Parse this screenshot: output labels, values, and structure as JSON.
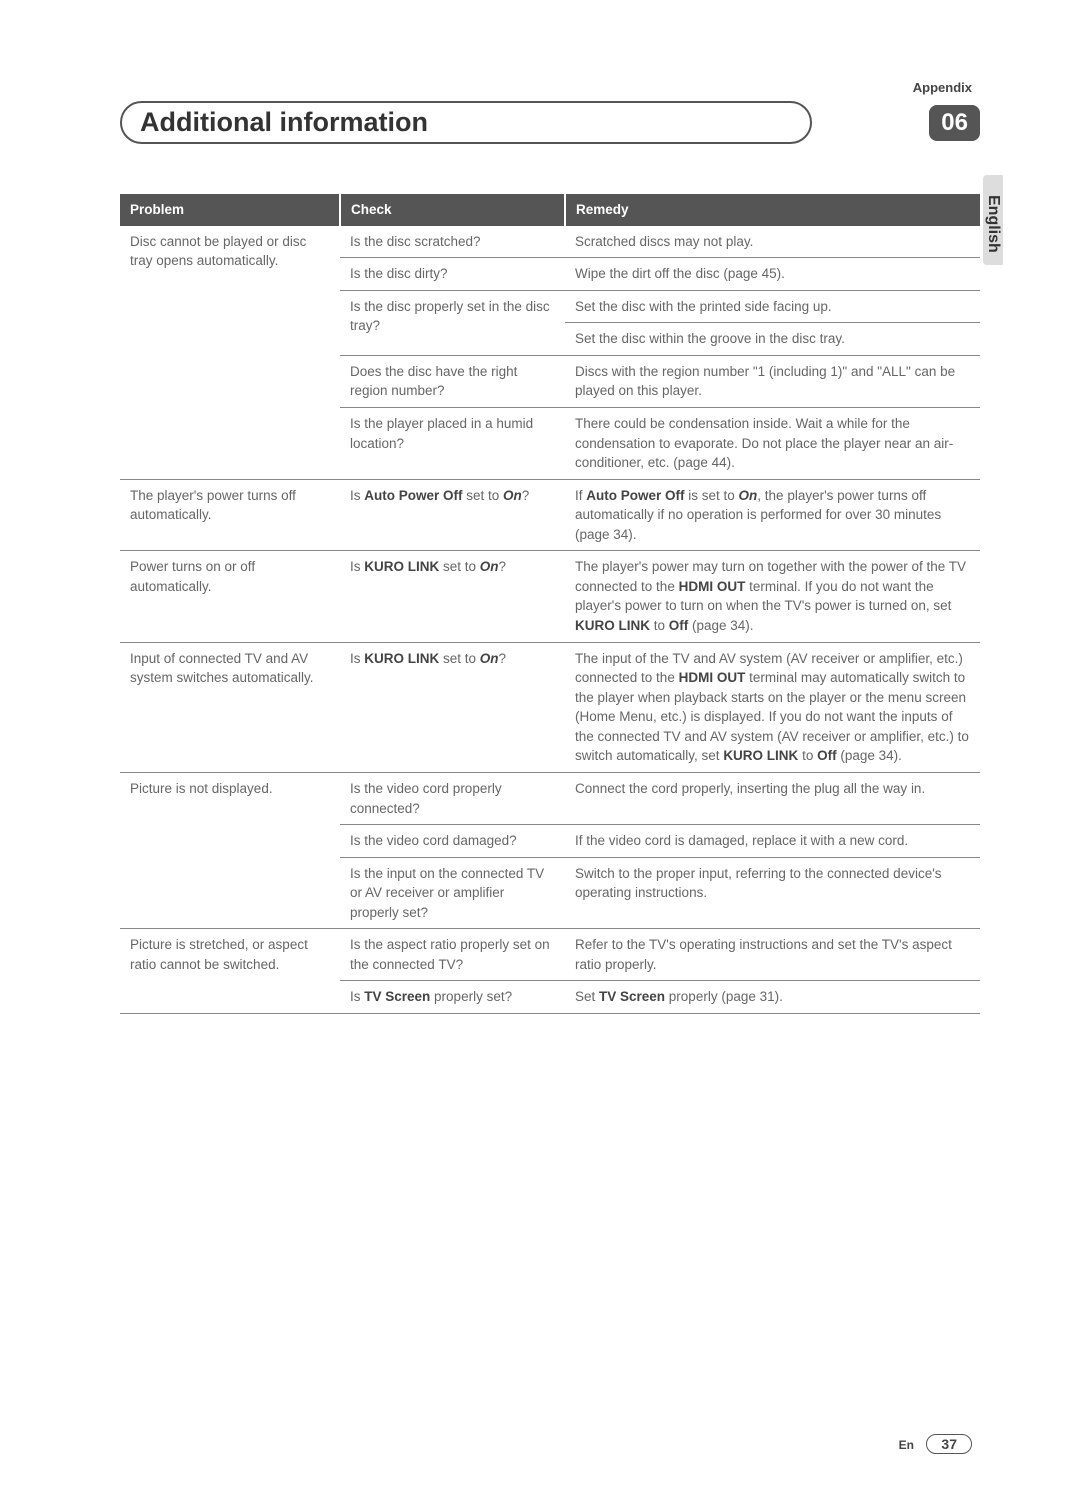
{
  "header": {
    "appendix": "Appendix",
    "title": "Additional information",
    "chapter": "06",
    "language_tab": "English"
  },
  "table": {
    "headers": [
      "Problem",
      "Check",
      "Remedy"
    ],
    "groups": [
      {
        "problem": "Disc cannot be played or disc tray opens automatically.",
        "rows": [
          {
            "check": "Is the disc scratched?",
            "remedy": "Scratched discs may not play."
          },
          {
            "check": "Is the disc dirty?",
            "remedy": "Wipe the dirt off the disc (page 45)."
          },
          {
            "check": "Is the disc properly set in the disc tray?",
            "check_rowspan": 2,
            "remedy": "Set the disc with the printed side facing up."
          },
          {
            "remedy": "Set the disc within the groove in the disc tray."
          },
          {
            "check": "Does the disc have the right region number?",
            "remedy": "Discs with the region number \"1 (including 1)\" and \"ALL\" can be played on this player."
          },
          {
            "check": "Is the player placed in a humid location?",
            "remedy": "There could be condensation inside. Wait a while for the condensation to evaporate. Do not place the player near an air-conditioner, etc. (page 44)."
          }
        ]
      },
      {
        "problem": "The player's power turns off automatically.",
        "rows": [
          {
            "check_html": "Is <b>Auto Power Off</b> set to <b><i>On</i></b>?",
            "remedy_html": "If <b>Auto Power Off</b> is set to <b><i>On</i></b>, the player's power turns off automatically if no operation is performed for over 30 minutes (page 34)."
          }
        ]
      },
      {
        "problem": "Power turns on or off automatically.",
        "rows": [
          {
            "check_html": "Is <b>KURO LINK</b> set to <b><i>On</i></b>?",
            "remedy_html": "The player's power may turn on together with the power of the TV connected to the <b>HDMI OUT</b> terminal. If you do not want the player's power to turn on when the TV's power is turned on, set <b>KURO LINK</b> to <b>Off</b> (page 34)."
          }
        ]
      },
      {
        "problem": "Input of connected TV and AV system switches automatically.",
        "rows": [
          {
            "check_html": "Is <b>KURO LINK</b> set to <b><i>On</i></b>?",
            "remedy_html": "The input of the TV and AV system (AV receiver or amplifier, etc.) connected to the <b>HDMI OUT</b> terminal may automatically switch to the player when playback starts on the player or the menu screen (Home Menu, etc.) is displayed. If you do not want the inputs of the connected TV and AV system (AV receiver or amplifier, etc.) to switch automatically, set <b>KURO LINK</b> to <b>Off</b> (page 34)."
          }
        ]
      },
      {
        "problem": "Picture is not displayed.",
        "rows": [
          {
            "check": "Is the video cord properly connected?",
            "remedy": "Connect the cord properly, inserting the plug all the way in."
          },
          {
            "check": "Is the video cord damaged?",
            "remedy": "If the video cord is damaged, replace it with a new cord."
          },
          {
            "check": "Is the input on the connected TV or AV receiver or amplifier properly set?",
            "remedy": "Switch to the proper input, referring to the connected device's operating instructions."
          }
        ]
      },
      {
        "problem": "Picture is stretched, or aspect ratio cannot be switched.",
        "rows": [
          {
            "check": "Is the aspect ratio properly set on the connected TV?",
            "remedy": "Refer to the TV's operating instructions and set the TV's aspect ratio properly."
          },
          {
            "check_html": "Is <b>TV Screen</b> properly set?",
            "remedy_html": "Set <b>TV Screen</b> properly (page 31)."
          }
        ]
      }
    ]
  },
  "footer": {
    "lang": "En",
    "page": "37"
  },
  "colors": {
    "header_bg": "#555555",
    "header_fg": "#ffffff",
    "body_text": "#666666",
    "border": "#888888",
    "tab_bg": "#dddddd"
  }
}
